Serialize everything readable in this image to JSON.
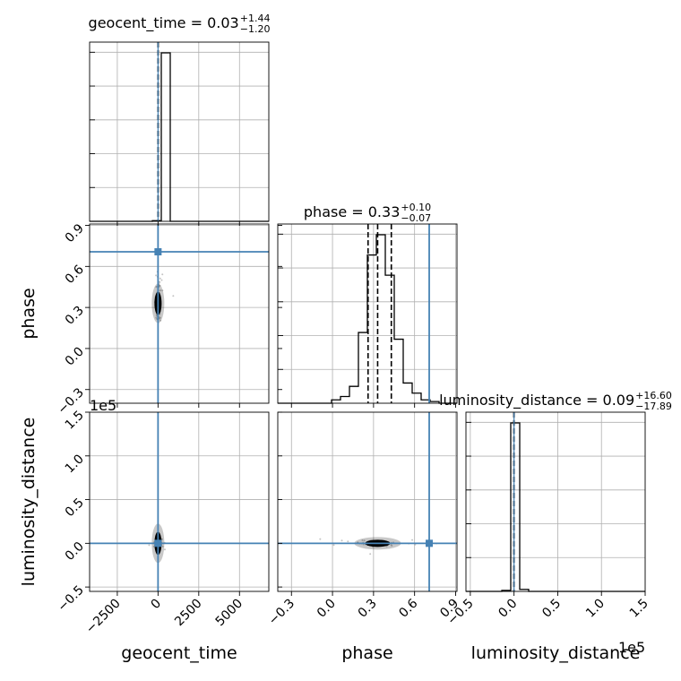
{
  "chart_data": {
    "type": "corner",
    "parameters": [
      "geocent_time",
      "phase",
      "luminosity_distance"
    ],
    "axis_labels": [
      "geocent_time",
      "phase",
      "luminosity_distance"
    ],
    "ranges": {
      "geocent_time": [
        -4200,
        6800
      ],
      "phase": [
        -0.4,
        0.91
      ],
      "luminosity_distance": [
        -55000,
        150000
      ]
    },
    "ticks": {
      "geocent_time": [
        -2500,
        0,
        2500,
        5000
      ],
      "phase": [
        -0.3,
        0.0,
        0.3,
        0.6,
        0.9
      ],
      "luminosity_distance": [
        -0.5,
        0.0,
        0.5,
        1.0,
        1.5
      ]
    },
    "tick_labels": {
      "geocent_time": [
        "−2500",
        "0",
        "2500",
        "5000"
      ],
      "phase": [
        "−0.3",
        "0.0",
        "0.3",
        "0.6",
        "0.9"
      ],
      "luminosity_distance": [
        "−0.5",
        "0.0",
        "0.5",
        "1.0",
        "1.5"
      ]
    },
    "offset_text": "1e5",
    "titles": [
      {
        "param": "geocent_time",
        "name": "geocent_time",
        "value": "0.03",
        "plus": "+1.44",
        "minus": "−1.20"
      },
      {
        "param": "phase",
        "name": "phase",
        "value": "0.33",
        "plus": "+0.10",
        "minus": "−0.07"
      },
      {
        "param": "luminosity_distance",
        "name": "luminosity_distance",
        "value": "0.09",
        "plus": "+16.60",
        "minus": "−17.89"
      }
    ],
    "histograms": {
      "geocent_time": {
        "edges": [
          -4200,
          -3650,
          -3100,
          -2550,
          -2000,
          -1450,
          -900,
          -350,
          200,
          750,
          1300,
          1850,
          2400,
          2950,
          3500,
          4050,
          4600,
          5150,
          5700,
          6250,
          6800
        ],
        "counts": [
          0,
          0,
          0,
          0,
          0,
          0,
          0,
          0.004,
          1.0,
          0,
          0,
          0,
          0,
          0,
          0,
          0,
          0,
          0,
          0,
          0
        ],
        "quantile_lines": [
          -1.17,
          0.03,
          1.47
        ]
      },
      "phase": {
        "edges": [
          -0.4,
          -0.3345,
          -0.269,
          -0.2035,
          -0.138,
          -0.0725,
          -0.007,
          0.0585,
          0.124,
          0.1895,
          0.255,
          0.3205,
          0.386,
          0.4515,
          0.517,
          0.5825,
          0.648,
          0.7135,
          0.779,
          0.8445,
          0.91
        ],
        "counts": [
          0,
          0,
          0,
          0,
          0,
          0,
          0.02,
          0.04,
          0.1,
          0.42,
          0.88,
          1.0,
          0.76,
          0.38,
          0.12,
          0.06,
          0.02,
          0.01,
          0,
          0
        ],
        "quantile_lines": [
          0.26,
          0.33,
          0.43
        ]
      },
      "luminosity_distance": {
        "edges": [
          -55000,
          -44750,
          -34500,
          -24250,
          -14000,
          -3750,
          6500,
          16750,
          27000,
          37250,
          47500,
          57750,
          68000,
          78250,
          88500,
          98750,
          109000,
          119250,
          129500,
          139750,
          150000
        ],
        "counts": [
          0,
          0,
          0,
          0,
          0.006,
          1.0,
          0.012,
          0,
          0,
          0,
          0,
          0,
          0,
          0,
          0,
          0,
          0,
          0,
          0,
          0
        ],
        "quantile_lines": [
          -17.8,
          0.09,
          16.69
        ]
      }
    },
    "truths": {
      "geocent_time": 0,
      "phase": 0.707,
      "luminosity_distance": 0
    },
    "colors": {
      "truth": "#4682b4",
      "hist": "#000000",
      "grid": "#b0b0b0",
      "scatter": "#7f7f7f"
    },
    "grid": true
  }
}
